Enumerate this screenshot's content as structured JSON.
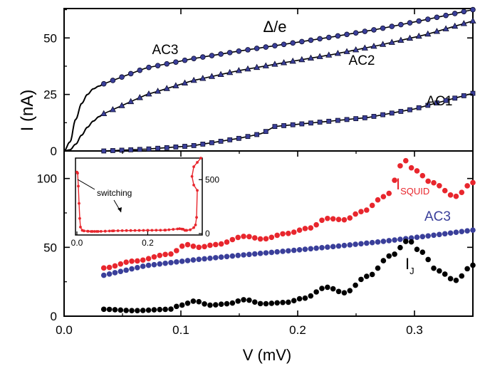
{
  "chart_data": [
    {
      "panel": "top",
      "type": "line",
      "ylabel": "I (nA)",
      "xlim": [
        0,
        0.35
      ],
      "ylim": [
        0,
        63
      ],
      "y_ticks": [
        "0",
        "25",
        "50"
      ],
      "colors": {
        "markers": "#3a3f9a",
        "marker_edge": "#0c0c2c",
        "fit": "#000000"
      },
      "annotation": "Δ/e",
      "series": [
        {
          "name": "AC3",
          "marker": "circle",
          "x": [
            0.034,
            0.07,
            0.11,
            0.15,
            0.19,
            0.23,
            0.27,
            0.31,
            0.35
          ],
          "y": [
            29.7,
            36.7,
            40.8,
            44.2,
            47.3,
            50.5,
            54.0,
            58.1,
            62.5
          ]
        },
        {
          "name": "AC2",
          "marker": "triangle",
          "x": [
            0.034,
            0.07,
            0.11,
            0.15,
            0.19,
            0.23,
            0.27,
            0.31,
            0.35
          ],
          "y": [
            16.5,
            24.8,
            31.1,
            35.6,
            39.2,
            42.7,
            46.8,
            51.5,
            57.5
          ]
        },
        {
          "name": "AC1",
          "marker": "square",
          "x": [
            0.034,
            0.07,
            0.11,
            0.15,
            0.17,
            0.18,
            0.22,
            0.26,
            0.3,
            0.35
          ],
          "y": [
            0.0,
            0.8,
            2.3,
            5.6,
            7.8,
            10.8,
            12.8,
            14.8,
            18.6,
            25.5
          ]
        },
        {
          "name": "",
          "style": "line",
          "x": [
            0.0,
            0.005,
            0.01,
            0.015,
            0.02,
            0.025,
            0.03,
            0.034
          ],
          "y": [
            0.0,
            4.0,
            14.0,
            21.0,
            25.0,
            27.5,
            28.7,
            29.7
          ]
        },
        {
          "name": "",
          "style": "line",
          "x": [
            0.0,
            0.005,
            0.01,
            0.015,
            0.02,
            0.025,
            0.03,
            0.034
          ],
          "y": [
            0.0,
            0.5,
            3.0,
            7.0,
            10.5,
            13.2,
            15.2,
            16.5
          ]
        }
      ]
    },
    {
      "panel": "bottom",
      "type": "scatter",
      "xlabel": "V (mV)",
      "xlim": [
        0,
        0.35
      ],
      "ylim": [
        0,
        120
      ],
      "x_ticks": [
        "0.0",
        "0.1",
        "0.2",
        "0.3"
      ],
      "y_ticks": [
        "0",
        "50",
        "100"
      ],
      "colors": {
        "I_SQUID": "#e8262d",
        "AC3": "#3a3f9a",
        "I_J": "#000000"
      },
      "series": [
        {
          "name": "I_SQUID",
          "label_main": "I",
          "label_sub": "SQUID",
          "x": [
            0.034,
            0.06,
            0.09,
            0.105,
            0.115,
            0.13,
            0.155,
            0.17,
            0.19,
            0.21,
            0.225,
            0.24,
            0.255,
            0.275,
            0.292,
            0.3,
            0.315,
            0.335,
            0.35
          ],
          "y": [
            35,
            40,
            45,
            52,
            50,
            52,
            58,
            56,
            60,
            64,
            71,
            70,
            76,
            87,
            113,
            106,
            97,
            87,
            97
          ]
        },
        {
          "name": "AC3",
          "x": [
            0.034,
            0.07,
            0.11,
            0.15,
            0.19,
            0.23,
            0.27,
            0.31,
            0.35
          ],
          "y": [
            29.7,
            36.7,
            40.8,
            44.2,
            47.3,
            50.5,
            54.0,
            58.1,
            62.5
          ]
        },
        {
          "name": "I_J",
          "label_main": "I",
          "label_sub": "J",
          "x": [
            0.034,
            0.06,
            0.09,
            0.1,
            0.112,
            0.125,
            0.14,
            0.155,
            0.17,
            0.19,
            0.205,
            0.225,
            0.24,
            0.26,
            0.28,
            0.295,
            0.305,
            0.32,
            0.335,
            0.35
          ],
          "y": [
            5,
            4,
            5,
            8,
            11,
            8,
            9,
            12,
            9,
            10,
            13,
            21,
            17,
            29,
            44,
            55,
            47,
            33,
            26,
            37
          ]
        }
      ],
      "inset": {
        "type": "line",
        "color": "#e8262d",
        "annotation": "switching",
        "xlim": [
          0,
          0.35
        ],
        "ylim": [
          0,
          700
        ],
        "x_ticks": [
          "0.0",
          "0.2"
        ],
        "y_ticks": [
          "0",
          "500"
        ],
        "x": [
          0.0,
          0.002,
          0.004,
          0.006,
          0.008,
          0.01,
          0.015,
          0.02,
          0.03,
          0.04,
          0.05,
          0.06,
          0.08,
          0.1,
          0.14,
          0.2,
          0.25,
          0.29,
          0.3,
          0.305,
          0.31,
          0.32,
          0.33,
          0.335,
          0.338,
          0.34,
          0.33,
          0.325,
          0.33,
          0.34,
          0.35
        ],
        "y": [
          570,
          560,
          440,
          280,
          140,
          60,
          30,
          25,
          22,
          20,
          20,
          20,
          22,
          25,
          28,
          30,
          32,
          45,
          40,
          30,
          30,
          35,
          55,
          80,
          150,
          400,
          450,
          530,
          620,
          660,
          700
        ]
      }
    }
  ]
}
